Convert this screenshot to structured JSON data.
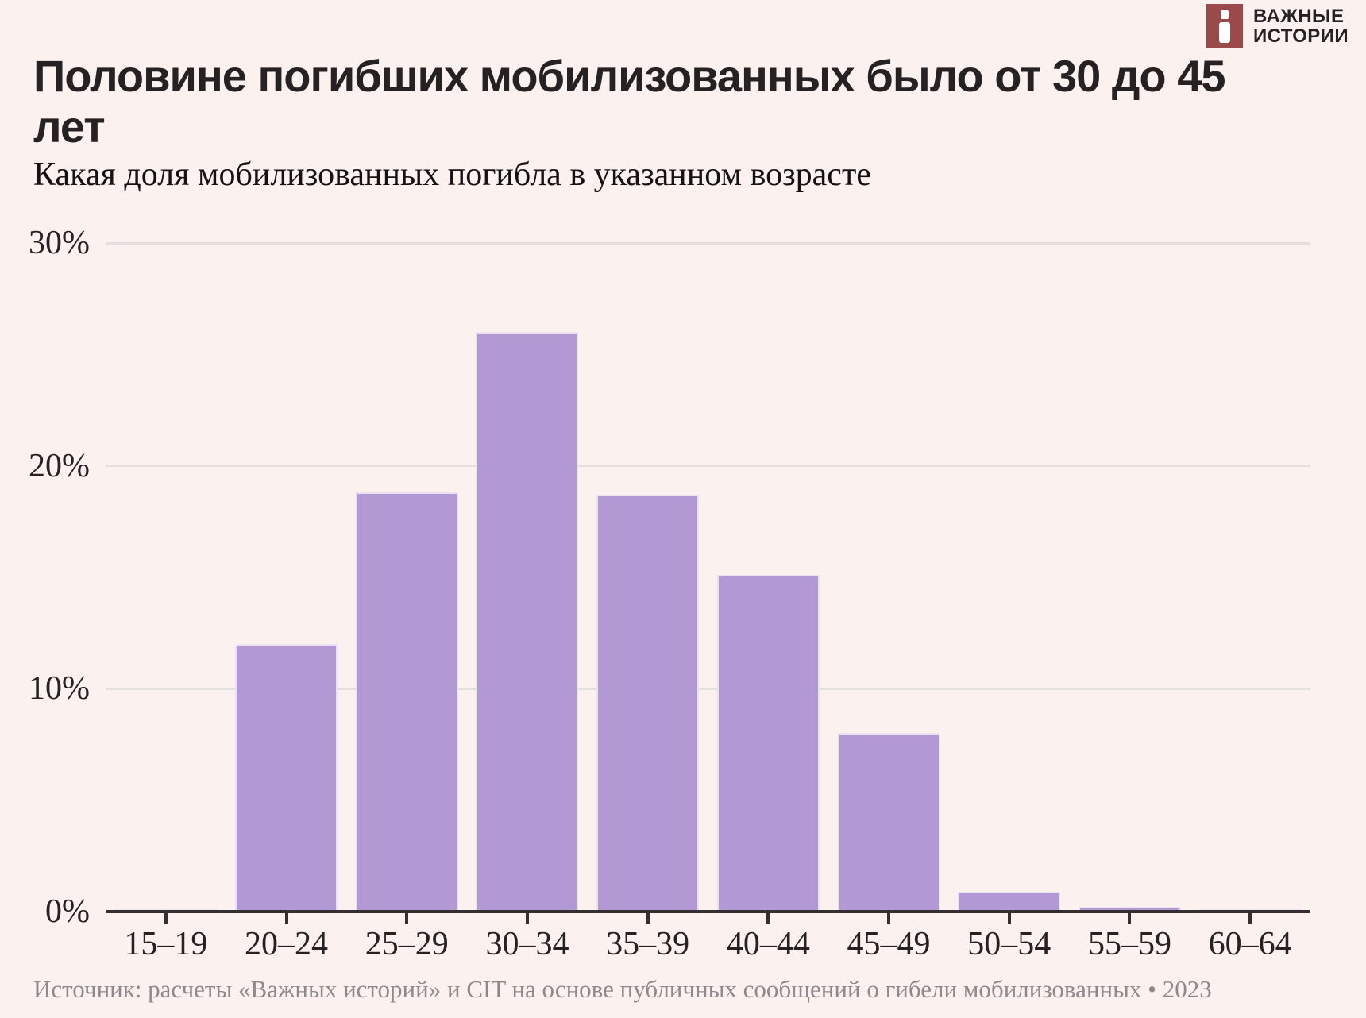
{
  "brand": {
    "name_line1": "ВАЖНЫЕ",
    "name_line2": "ИСТОРИИ"
  },
  "header": {
    "title_line1": "Половине погибших мобилизованных было от 30 до 45",
    "title_line2": "лет",
    "subtitle": "Какая доля мобилизованных погибла в указанном возрасте"
  },
  "footer": {
    "source": "Источник: расчеты «Важных историй» и CIT на основе публичных сообщений о гибели мобилизованных • 2023"
  },
  "colors": {
    "background": "#fbf2ef",
    "bar_fill": "#b399d3",
    "bar_stroke": "#eae2f3",
    "gridline": "#e3e0df",
    "axis": "#343031",
    "text": "#262223",
    "muted_text": "#8e8a8b",
    "brand_red": "#9a4a4a"
  },
  "chart_data": {
    "type": "bar",
    "title": "Половине погибших мобилизованных было от 30 до 45 лет",
    "subtitle": "Какая доля мобилизованных погибла в указанном возрасте",
    "categories": [
      "15–19",
      "20–24",
      "25–29",
      "30–34",
      "35–39",
      "40–44",
      "45–49",
      "50–54",
      "55–59",
      "60–64"
    ],
    "values": [
      0.1,
      12.0,
      18.8,
      26.0,
      18.7,
      15.1,
      8.0,
      0.9,
      0.2,
      0.1
    ],
    "unit": "%",
    "xlabel": "",
    "ylabel": "",
    "ylim": [
      0,
      30
    ],
    "yticks": [
      {
        "value": 0,
        "label": "0%"
      },
      {
        "value": 10,
        "label": "10%"
      },
      {
        "value": 20,
        "label": "20%"
      },
      {
        "value": 30,
        "label": "30%"
      }
    ],
    "grid": "horizontal",
    "legend": "none",
    "source_note": "Источник: расчеты «Важных историй» и CIT на основе публичных сообщений о гибели мобилизованных • 2023"
  }
}
